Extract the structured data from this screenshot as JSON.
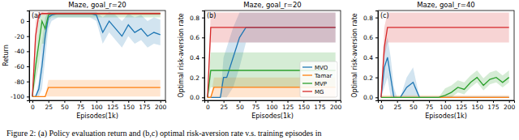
{
  "chart_data": [
    {
      "type": "line",
      "title": "Maze, goal_r=20",
      "annotation": "(a)",
      "x_label": "Episodes(1k)",
      "y_label": "Return",
      "x": [
        0,
        5,
        10,
        15,
        20,
        25,
        30,
        40,
        50,
        60,
        70,
        80,
        90,
        100,
        110,
        120,
        130,
        140,
        150,
        160,
        170,
        180,
        190,
        200
      ],
      "xlim": [
        -5,
        208
      ],
      "xticks": [
        0,
        25,
        50,
        75,
        100,
        125,
        150,
        175,
        200
      ],
      "ylim": [
        -105,
        14
      ],
      "yticks": [
        -100,
        -80,
        -60,
        -40,
        -20,
        0
      ],
      "series": [
        {
          "name": "MVO",
          "color": "#1f77b4",
          "values": [
            -100,
            -100,
            -90,
            -60,
            -20,
            5,
            8,
            10,
            10,
            10,
            10,
            10,
            10,
            8,
            -15,
            0,
            -10,
            -20,
            -5,
            -15,
            -10,
            -20,
            -15,
            -18
          ],
          "lower": [
            -100,
            -100,
            -100,
            -90,
            -50,
            -10,
            0,
            5,
            5,
            5,
            5,
            5,
            5,
            0,
            -30,
            -15,
            -25,
            -35,
            -20,
            -30,
            -25,
            -35,
            -30,
            -32
          ],
          "upper": [
            -100,
            -100,
            -80,
            -30,
            5,
            12,
            12,
            12,
            12,
            12,
            12,
            12,
            12,
            12,
            5,
            12,
            8,
            0,
            10,
            5,
            8,
            0,
            5,
            2
          ]
        },
        {
          "name": "Tamar",
          "color": "#ff7f0e",
          "values": [
            -100,
            -100,
            -100,
            -100,
            -100,
            -88,
            -88,
            -88,
            -88,
            -88,
            -88,
            -88,
            -88,
            -88,
            -88,
            -88,
            -88,
            -88,
            -88,
            -88,
            -88,
            -88,
            -88,
            -88
          ],
          "lower": [
            -100,
            -100,
            -100,
            -100,
            -100,
            -100,
            -100,
            -100,
            -100,
            -100,
            -100,
            -100,
            -100,
            -100,
            -100,
            -100,
            -100,
            -100,
            -100,
            -100,
            -100,
            -100,
            -100,
            -100
          ],
          "upper": [
            -100,
            -100,
            -100,
            -100,
            -100,
            -78,
            -78,
            -78,
            -78,
            -78,
            -78,
            -78,
            -78,
            -78,
            -78,
            -78,
            -78,
            -78,
            -78,
            -78,
            -78,
            -78,
            -78,
            -78
          ]
        },
        {
          "name": "MVP",
          "color": "#2ca02c",
          "values": [
            -100,
            -60,
            -30,
            0,
            -10,
            8,
            10,
            10,
            10,
            10,
            10,
            10,
            10,
            10,
            10,
            10,
            10,
            10,
            10,
            10,
            10,
            10,
            10,
            10
          ],
          "lower": [
            -100,
            -80,
            -60,
            -30,
            -30,
            0,
            5,
            5,
            5,
            5,
            5,
            5,
            5,
            5,
            5,
            5,
            5,
            5,
            5,
            5,
            5,
            5,
            5,
            5
          ],
          "upper": [
            -100,
            -40,
            0,
            12,
            10,
            12,
            12,
            12,
            12,
            12,
            12,
            12,
            12,
            12,
            12,
            12,
            12,
            12,
            12,
            12,
            12,
            12,
            12,
            12
          ]
        },
        {
          "name": "MG",
          "color": "#d62728",
          "values": [
            -100,
            -20,
            8,
            10,
            10,
            10,
            10,
            10,
            10,
            10,
            10,
            10,
            10,
            10,
            10,
            10,
            10,
            10,
            10,
            10,
            10,
            10,
            10,
            10
          ],
          "lower": [
            -100,
            -40,
            5,
            8,
            8,
            8,
            8,
            8,
            8,
            8,
            8,
            8,
            8,
            8,
            8,
            8,
            8,
            8,
            8,
            8,
            8,
            8,
            8,
            8
          ],
          "upper": [
            -100,
            0,
            12,
            12,
            12,
            12,
            12,
            12,
            12,
            12,
            12,
            12,
            12,
            12,
            12,
            12,
            12,
            12,
            12,
            12,
            12,
            12,
            12,
            12
          ]
        }
      ]
    },
    {
      "type": "line",
      "title": "Maze, goal_r=20",
      "annotation": "(b)",
      "x_label": "Episodes(1k)",
      "y_label": "Optimal risk-aversion rate",
      "legend": "lower right",
      "x": [
        0,
        5,
        10,
        15,
        20,
        25,
        30,
        40,
        50,
        60,
        70,
        80,
        90,
        100,
        110,
        120,
        130,
        140,
        150,
        160,
        170,
        180,
        190,
        200
      ],
      "xlim": [
        -5,
        208
      ],
      "xticks": [
        0,
        25,
        50,
        75,
        100,
        125,
        150,
        175,
        200
      ],
      "ylim": [
        -0.03,
        0.87
      ],
      "yticks": [
        {
          "value": 0,
          "label": "0.0"
        },
        {
          "value": 0.2,
          "label": "0.2"
        },
        {
          "value": 0.4,
          "label": "0.4"
        },
        {
          "value": 0.6,
          "label": "0.6"
        },
        {
          "value": 0.8,
          "label": "0.8"
        }
      ],
      "series": [
        {
          "name": "MVO",
          "color": "#1f77b4",
          "values": [
            0,
            0,
            0,
            0,
            0,
            0.2,
            0.2,
            0.4,
            0.6,
            0.7,
            0.7,
            0.7,
            0.7,
            0.7,
            0.7,
            0.7,
            0.7,
            0.7,
            0.7,
            0.7,
            0.7,
            0.7,
            0.7,
            0.7
          ],
          "lower": [
            0,
            0,
            0,
            0,
            0,
            0,
            0,
            0.1,
            0.3,
            0.55,
            0.55,
            0.55,
            0.55,
            0.55,
            0.55,
            0.55,
            0.55,
            0.55,
            0.55,
            0.55,
            0.55,
            0.55,
            0.55,
            0.55
          ],
          "upper": [
            0,
            0,
            0,
            0,
            0,
            0.4,
            0.5,
            0.7,
            0.85,
            0.85,
            0.85,
            0.85,
            0.85,
            0.85,
            0.85,
            0.85,
            0.85,
            0.85,
            0.85,
            0.85,
            0.85,
            0.85,
            0.85,
            0.85
          ]
        },
        {
          "name": "Tamar",
          "color": "#ff7f0e",
          "values": [
            0,
            0,
            0.1,
            0.1,
            0.1,
            0.1,
            0.1,
            0.1,
            0.1,
            0.1,
            0.1,
            0.1,
            0.1,
            0.1,
            0.1,
            0.1,
            0.1,
            0.1,
            0.1,
            0.1,
            0.1,
            0.1,
            0.1,
            0.1
          ],
          "lower": [
            0,
            0,
            0,
            0,
            0,
            0,
            0,
            0,
            0,
            0,
            0,
            0,
            0,
            0,
            0,
            0,
            0,
            0,
            0,
            0,
            0,
            0,
            0,
            0
          ],
          "upper": [
            0,
            0,
            0.2,
            0.2,
            0.2,
            0.2,
            0.2,
            0.2,
            0.2,
            0.2,
            0.2,
            0.2,
            0.2,
            0.2,
            0.2,
            0.2,
            0.2,
            0.2,
            0.2,
            0.2,
            0.2,
            0.2,
            0.2,
            0.2
          ]
        },
        {
          "name": "MVP",
          "color": "#2ca02c",
          "values": [
            0,
            0.27,
            0.27,
            0.27,
            0.27,
            0.27,
            0.27,
            0.27,
            0.27,
            0.27,
            0.27,
            0.27,
            0.27,
            0.27,
            0.27,
            0.27,
            0.27,
            0.27,
            0.27,
            0.27,
            0.27,
            0.27,
            0.27,
            0.27
          ],
          "lower": [
            0,
            0.1,
            0.1,
            0.1,
            0.1,
            0.1,
            0.1,
            0.1,
            0.1,
            0.1,
            0.1,
            0.1,
            0.1,
            0.1,
            0.1,
            0.1,
            0.1,
            0.1,
            0.1,
            0.1,
            0.1,
            0.1,
            0.1,
            0.1
          ],
          "upper": [
            0,
            0.45,
            0.45,
            0.45,
            0.45,
            0.45,
            0.45,
            0.45,
            0.45,
            0.45,
            0.45,
            0.45,
            0.45,
            0.45,
            0.45,
            0.45,
            0.45,
            0.45,
            0.45,
            0.45,
            0.45,
            0.45,
            0.45,
            0.45
          ]
        },
        {
          "name": "MG",
          "color": "#d62728",
          "values": [
            0,
            0.7,
            0.7,
            0.7,
            0.7,
            0.7,
            0.7,
            0.7,
            0.7,
            0.7,
            0.7,
            0.7,
            0.7,
            0.7,
            0.7,
            0.7,
            0.7,
            0.7,
            0.7,
            0.7,
            0.7,
            0.7,
            0.7,
            0.7
          ],
          "lower": [
            0,
            0.55,
            0.55,
            0.55,
            0.55,
            0.55,
            0.55,
            0.55,
            0.55,
            0.55,
            0.55,
            0.55,
            0.55,
            0.55,
            0.55,
            0.55,
            0.55,
            0.55,
            0.55,
            0.55,
            0.55,
            0.55,
            0.55,
            0.55
          ],
          "upper": [
            0,
            0.85,
            0.85,
            0.85,
            0.85,
            0.85,
            0.85,
            0.85,
            0.85,
            0.85,
            0.85,
            0.85,
            0.85,
            0.85,
            0.85,
            0.85,
            0.85,
            0.85,
            0.85,
            0.85,
            0.85,
            0.85,
            0.85,
            0.85
          ]
        }
      ]
    },
    {
      "type": "line",
      "title": "Maze, goal_r=40",
      "annotation": "(c)",
      "x_label": "Episodes(1k)",
      "y_label": "Optimal risk-aversion rate",
      "x": [
        0,
        5,
        10,
        15,
        20,
        25,
        30,
        40,
        50,
        60,
        70,
        80,
        90,
        100,
        110,
        120,
        130,
        140,
        150,
        160,
        170,
        180,
        190,
        200
      ],
      "xlim": [
        -5,
        208
      ],
      "xticks": [
        0,
        25,
        50,
        75,
        100,
        125,
        150,
        175,
        200
      ],
      "ylim": [
        -0.03,
        0.87
      ],
      "yticks": [
        {
          "value": 0,
          "label": "0.0"
        },
        {
          "value": 0.2,
          "label": "0.2"
        },
        {
          "value": 0.4,
          "label": "0.4"
        },
        {
          "value": 0.6,
          "label": "0.6"
        },
        {
          "value": 0.8,
          "label": "0.8"
        }
      ],
      "series": [
        {
          "name": "MVO",
          "color": "#1f77b4",
          "values": [
            0,
            0.3,
            0.4,
            0.2,
            0,
            0,
            0,
            0.1,
            0.15,
            0,
            0,
            0,
            0,
            0,
            0,
            0,
            0,
            0,
            0,
            0,
            0,
            0,
            0,
            0
          ],
          "lower": [
            0,
            0.1,
            0.2,
            0,
            0,
            0,
            0,
            0,
            0,
            0,
            0,
            0,
            0,
            0,
            0,
            0,
            0,
            0,
            0,
            0,
            0,
            0,
            0,
            0
          ],
          "upper": [
            0,
            0.5,
            0.6,
            0.4,
            0.1,
            0,
            0,
            0.2,
            0.3,
            0,
            0,
            0,
            0,
            0,
            0,
            0,
            0,
            0,
            0,
            0,
            0,
            0,
            0,
            0
          ]
        },
        {
          "name": "Tamar",
          "color": "#ff7f0e",
          "values": [
            0,
            0,
            0,
            0,
            0,
            0,
            0,
            0,
            0,
            0,
            0,
            0,
            0,
            0,
            0,
            0,
            0,
            0,
            0,
            0,
            0,
            0,
            0,
            0
          ],
          "lower": [
            0,
            0,
            0,
            0,
            0,
            0,
            0,
            0,
            0,
            0,
            0,
            0,
            0,
            0,
            0,
            0,
            0,
            0,
            0,
            0,
            0,
            0,
            0,
            0
          ],
          "upper": [
            0.02,
            0.02,
            0.02,
            0.02,
            0.02,
            0.02,
            0.02,
            0.02,
            0.02,
            0.02,
            0.02,
            0.02,
            0.02,
            0.02,
            0.02,
            0.02,
            0.02,
            0.02,
            0.02,
            0.02,
            0.02,
            0.02,
            0.02,
            0.02
          ]
        },
        {
          "name": "MVP",
          "color": "#2ca02c",
          "values": [
            0,
            0,
            0,
            0,
            0,
            0,
            0,
            0,
            0,
            0,
            0,
            0,
            0,
            0.02,
            0.05,
            0.1,
            0.08,
            0.15,
            0.2,
            0.12,
            0.18,
            0.2,
            0.15,
            0.2
          ],
          "lower": [
            0,
            0,
            0,
            0,
            0,
            0,
            0,
            0,
            0,
            0,
            0,
            0,
            0,
            0,
            0,
            0.05,
            0.03,
            0.1,
            0.15,
            0.07,
            0.13,
            0.15,
            0.1,
            0.15
          ],
          "upper": [
            0,
            0,
            0,
            0,
            0,
            0,
            0,
            0,
            0,
            0,
            0,
            0,
            0,
            0.09,
            0.12,
            0.17,
            0.15,
            0.22,
            0.27,
            0.19,
            0.25,
            0.27,
            0.22,
            0.27
          ]
        },
        {
          "name": "MG",
          "color": "#d62728",
          "values": [
            0,
            0.5,
            0.7,
            0.7,
            0.7,
            0.7,
            0.7,
            0.7,
            0.7,
            0.7,
            0.7,
            0.7,
            0.7,
            0.7,
            0.7,
            0.7,
            0.7,
            0.7,
            0.7,
            0.7,
            0.7,
            0.7,
            0.7,
            0.7
          ],
          "lower": [
            0,
            0.4,
            0.55,
            0.55,
            0.55,
            0.55,
            0.55,
            0.55,
            0.55,
            0.55,
            0.55,
            0.55,
            0.55,
            0.55,
            0.55,
            0.55,
            0.55,
            0.55,
            0.55,
            0.55,
            0.55,
            0.55,
            0.55,
            0.55
          ],
          "upper": [
            0,
            0.7,
            0.85,
            0.85,
            0.85,
            0.85,
            0.85,
            0.85,
            0.85,
            0.85,
            0.85,
            0.85,
            0.85,
            0.85,
            0.85,
            0.85,
            0.85,
            0.85,
            0.85,
            0.85,
            0.85,
            0.85,
            0.85,
            0.85
          ]
        }
      ]
    }
  ],
  "caption": "Figure 2: (a) Policy evaluation return and (b,c) optimal risk-aversion rate v.s. training episodes in"
}
